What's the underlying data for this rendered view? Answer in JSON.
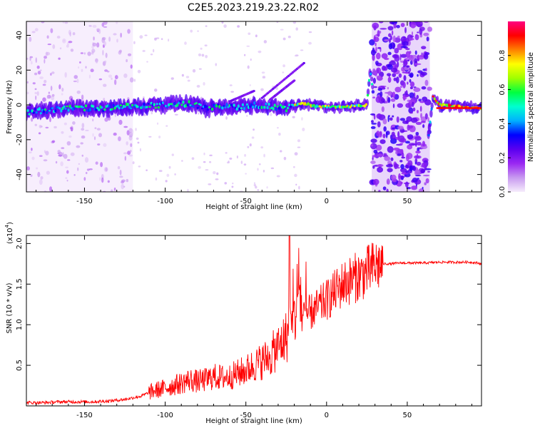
{
  "title": "C2E5.2023.219.23.22.R02",
  "chart_data": [
    {
      "type": "heatmap",
      "xlabel": "Height of straight line (km)",
      "ylabel": "Frequency (Hz)",
      "xlim": [
        -186,
        96
      ],
      "ylim": [
        -50,
        48
      ],
      "xticks": [
        -150,
        -100,
        -50,
        0,
        50
      ],
      "yticks": [
        -40,
        -20,
        0,
        20,
        40
      ],
      "colorbar": {
        "label": "Normalized spectral amplitude",
        "range": [
          0.0,
          1.0
        ],
        "ticks": [
          "0.0",
          "0.2",
          "0.4",
          "0.6",
          "0.8"
        ],
        "colormap": [
          "#f6ecfc",
          "#c89af0",
          "#9a28f2",
          "#5a00f0",
          "#0000ff",
          "#00b0ff",
          "#00ffd0",
          "#00ff40",
          "#a0ff00",
          "#ffff00",
          "#ff8000",
          "#ff0000",
          "#ff0080"
        ]
      },
      "band_center_profile": {
        "x": [
          -186,
          -160,
          -140,
          -120,
          -100,
          -85,
          -75,
          -65,
          -55,
          -45,
          -35,
          -25,
          -15,
          -5,
          5,
          15,
          25,
          27,
          30,
          50,
          63,
          66,
          70,
          96
        ],
        "freq_hz": [
          -4,
          -2,
          -2,
          -1,
          0,
          1,
          -2,
          -1,
          -1,
          0,
          -1,
          -2,
          1,
          -1,
          -1,
          -1,
          0,
          20,
          0,
          0,
          -20,
          5,
          0,
          -2
        ]
      },
      "broadband_regions_km": [
        [
          -186,
          -120
        ],
        [
          28,
          64
        ]
      ]
    },
    {
      "type": "line",
      "xlabel": "Height of straight line (km)",
      "ylabel": "SNR (10 * v/v)",
      "multiplier_label": "(x10",
      "multiplier_exp": "4",
      "multiplier_close": ")",
      "xlim": [
        -186,
        96
      ],
      "ylim": [
        0,
        2.1
      ],
      "xticks": [
        -150,
        -100,
        -50,
        0,
        50
      ],
      "yticks": [
        0.5,
        1.0,
        1.5,
        2.0
      ],
      "ytick_labels": [
        "0.5",
        "1.0",
        "1.5",
        "2.0"
      ],
      "color": "#ff0000",
      "series": [
        {
          "x": [
            -186,
            -175,
            -165,
            -155,
            -145,
            -135,
            -125,
            -115,
            -108,
            -100,
            -95,
            -90,
            -85,
            -80,
            -75,
            -70,
            -65,
            -60,
            -55,
            -50,
            -45,
            -40,
            -35,
            -30,
            -25,
            -20,
            -17,
            -15,
            -10,
            -5,
            0,
            5,
            10,
            15,
            20,
            25,
            30,
            35,
            40,
            45,
            50,
            60,
            70,
            80,
            90,
            96
          ],
          "y": [
            0.04,
            0.04,
            0.05,
            0.05,
            0.05,
            0.06,
            0.08,
            0.12,
            0.18,
            0.22,
            0.25,
            0.28,
            0.32,
            0.3,
            0.32,
            0.36,
            0.35,
            0.36,
            0.4,
            0.44,
            0.5,
            0.55,
            0.62,
            0.72,
            0.85,
            1.05,
            1.55,
            1.1,
            1.15,
            1.22,
            1.3,
            1.4,
            1.5,
            1.55,
            1.6,
            1.65,
            1.72,
            1.75,
            1.75,
            1.76,
            1.76,
            1.76,
            1.77,
            1.77,
            1.77,
            1.75
          ]
        }
      ]
    }
  ]
}
